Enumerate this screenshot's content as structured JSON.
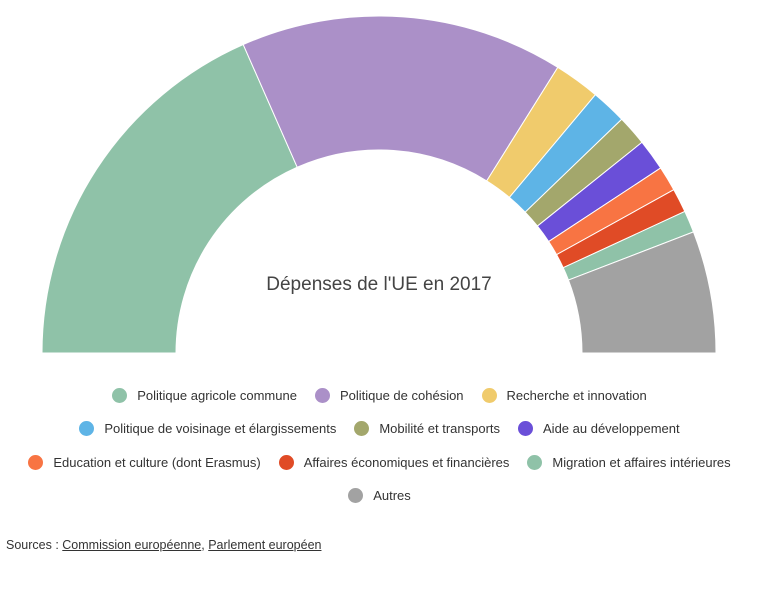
{
  "chart_data": {
    "type": "pie",
    "subtype": "semi-donut",
    "title": "Dépenses de l'UE en 2017",
    "series": [
      {
        "name": "Politique agricole commune",
        "value": 36.8,
        "color": "#8fc2a8"
      },
      {
        "name": "Politique de cohésion",
        "value": 31.0,
        "color": "#ab90c8"
      },
      {
        "name": "Recherche et innovation",
        "value": 4.4,
        "color": "#f0cb6c"
      },
      {
        "name": "Politique de voisinage et élargissements",
        "value": 3.4,
        "color": "#5eb4e6"
      },
      {
        "name": "Mobilité et transports",
        "value": 2.9,
        "color": "#a3a76c"
      },
      {
        "name": "Aide au développement",
        "value": 3.0,
        "color": "#6a4fd8"
      },
      {
        "name": "Education et culture (dont Erasmus)",
        "value": 2.4,
        "color": "#f87443"
      },
      {
        "name": "Affaires économiques et financières",
        "value": 2.3,
        "color": "#e04b26"
      },
      {
        "name": "Migration et affaires intérieures",
        "value": 2.1,
        "color": "#8fc2a8"
      },
      {
        "name": "Autres",
        "value": 11.7,
        "color": "#a2a2a2"
      }
    ],
    "legend_position": "bottom"
  },
  "sources": {
    "prefix": "Sources : ",
    "link1": "Commission européenne",
    "separator": ", ",
    "link2": "Parlement européen"
  }
}
